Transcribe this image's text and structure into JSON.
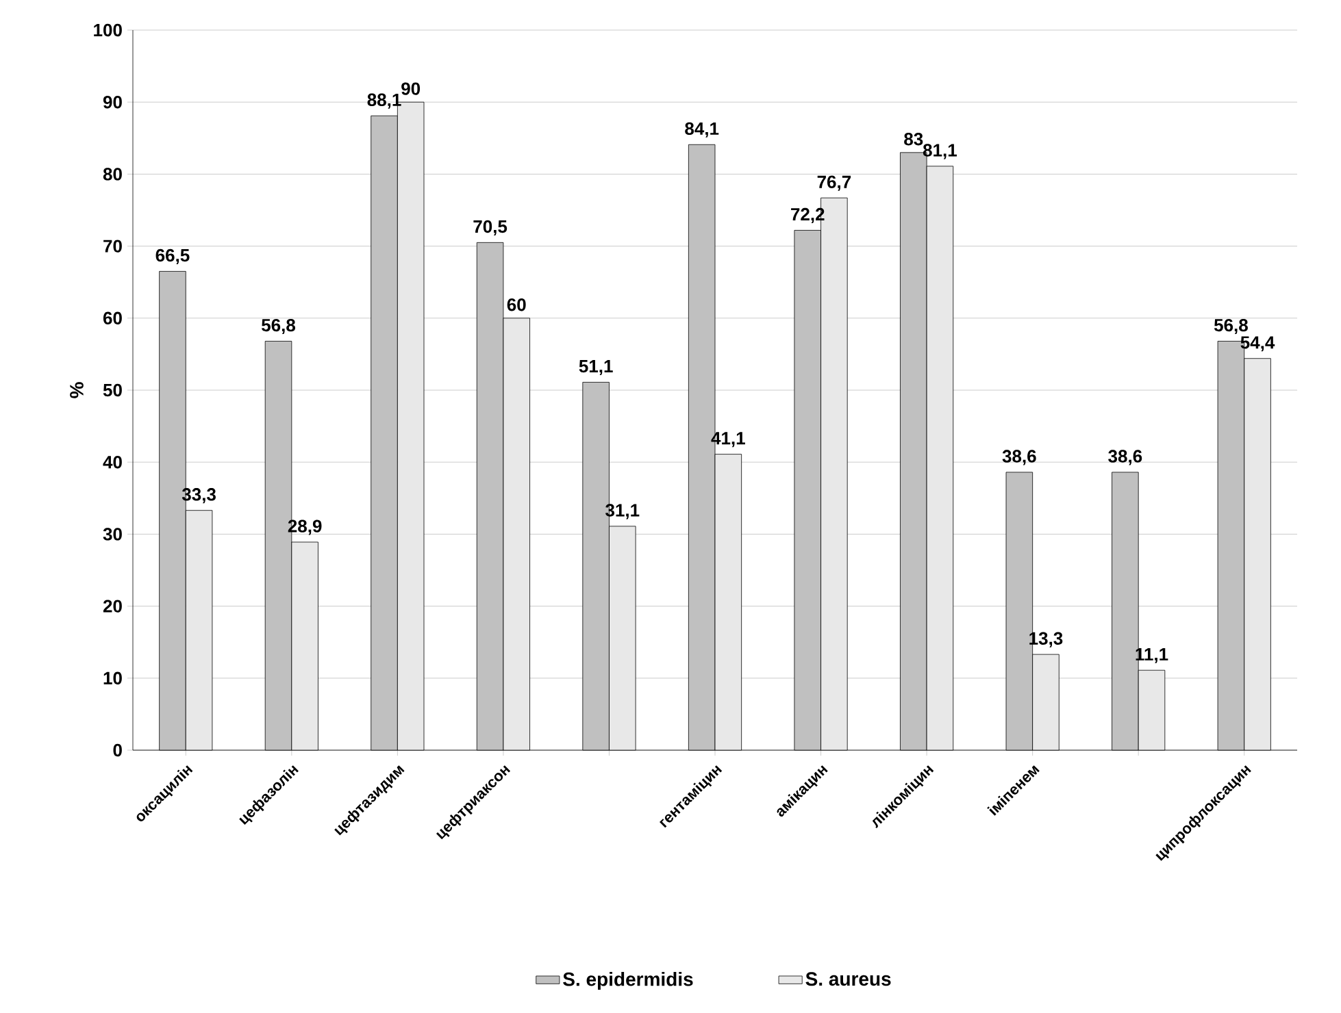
{
  "chart_data": {
    "type": "bar",
    "ylabel": "%",
    "categories": [
      "оксацилін",
      "цефазолін",
      "цефтазидим",
      "цефтриаксон",
      null,
      "гентаміцин",
      "амікацин",
      "лінкоміцин",
      "іміпенем",
      null,
      "ципрофлоксацин"
    ],
    "series": [
      {
        "name": "S. epidermidis",
        "color": "#c0c0c0",
        "values": [
          66.5,
          56.8,
          88.1,
          70.5,
          51.1,
          84.1,
          72.2,
          83,
          38.6,
          38.6,
          56.8
        ],
        "value_labels": [
          "66,5",
          "56,8",
          "88,1",
          "70,5",
          "51,1",
          "84,1",
          "72,2",
          "83",
          "38,6",
          "38,6",
          "56,8"
        ]
      },
      {
        "name": "S. aureus",
        "color": "#e8e8e8",
        "values": [
          33.3,
          28.9,
          90,
          60,
          31.1,
          41.1,
          76.7,
          81.1,
          13.3,
          11.1,
          54.4
        ],
        "value_labels": [
          "33,3",
          "28,9",
          "90",
          "60",
          "31,1",
          "41,1",
          "76,7",
          "81,1",
          "13,3",
          "11,1",
          "54,4"
        ]
      }
    ],
    "ylim": [
      0,
      100
    ],
    "yticks": [
      0,
      10,
      20,
      30,
      40,
      50,
      60,
      70,
      80,
      90,
      100
    ],
    "grid": "y",
    "legend": "bottom"
  }
}
